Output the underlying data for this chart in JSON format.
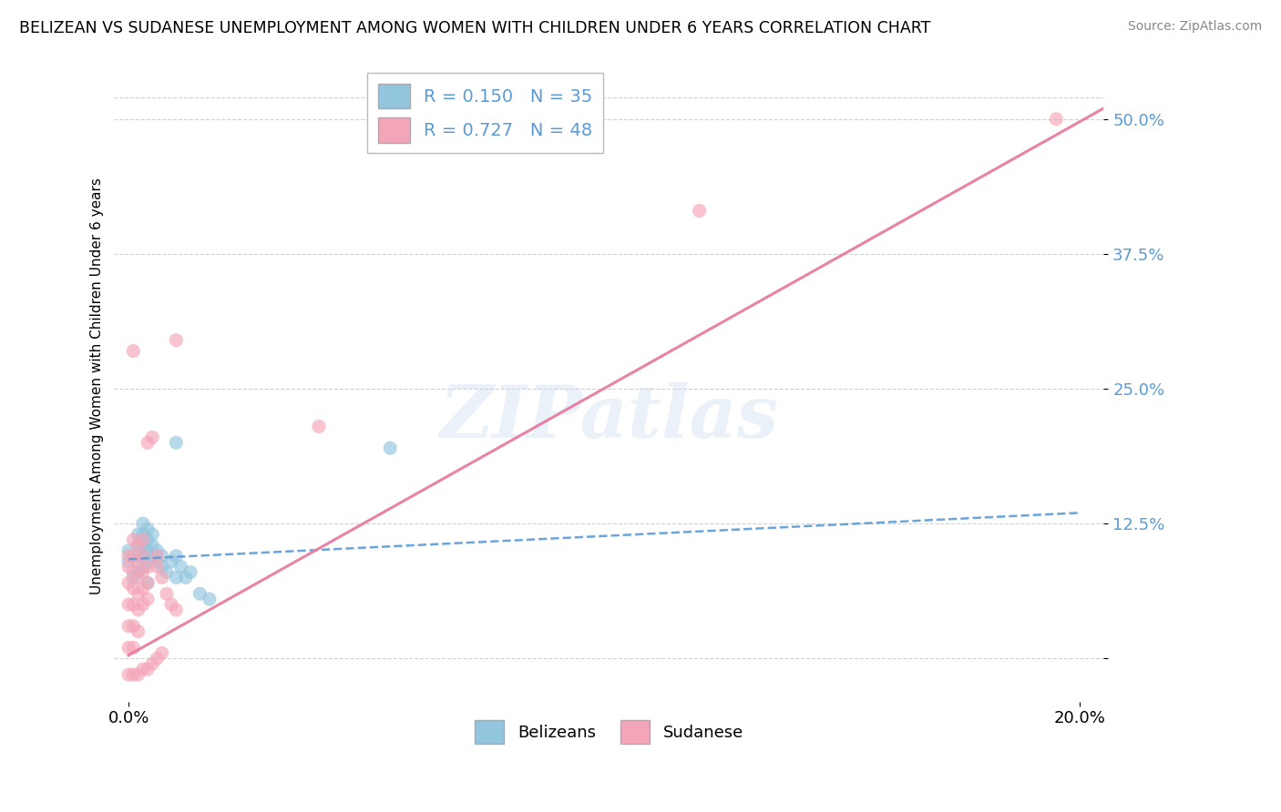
{
  "title": "BELIZEAN VS SUDANESE UNEMPLOYMENT AMONG WOMEN WITH CHILDREN UNDER 6 YEARS CORRELATION CHART",
  "source": "Source: ZipAtlas.com",
  "ylabel": "Unemployment Among Women with Children Under 6 years",
  "xmin": 0.0,
  "xmax": 0.205,
  "ymin": -0.04,
  "ymax": 0.545,
  "yticks": [
    0.0,
    0.125,
    0.25,
    0.375,
    0.5
  ],
  "ytick_labels": [
    "",
    "12.5%",
    "25.0%",
    "37.5%",
    "50.0%"
  ],
  "blue_R": 0.15,
  "blue_N": 35,
  "pink_R": 0.727,
  "pink_N": 48,
  "blue_color": "#92c5de",
  "pink_color": "#f4a5b8",
  "blue_line_color": "#5b9bd5",
  "pink_line_color": "#e87ca0",
  "tick_label_color": "#5b9bd5",
  "blue_scatter": [
    [
      0.0,
      0.09
    ],
    [
      0.0,
      0.1
    ],
    [
      0.001,
      0.075
    ],
    [
      0.002,
      0.095
    ],
    [
      0.002,
      0.105
    ],
    [
      0.002,
      0.115
    ],
    [
      0.002,
      0.08
    ],
    [
      0.003,
      0.085
    ],
    [
      0.003,
      0.095
    ],
    [
      0.003,
      0.105
    ],
    [
      0.003,
      0.115
    ],
    [
      0.003,
      0.125
    ],
    [
      0.004,
      0.09
    ],
    [
      0.004,
      0.1
    ],
    [
      0.004,
      0.11
    ],
    [
      0.004,
      0.12
    ],
    [
      0.004,
      0.07
    ],
    [
      0.005,
      0.095
    ],
    [
      0.005,
      0.105
    ],
    [
      0.005,
      0.115
    ],
    [
      0.006,
      0.09
    ],
    [
      0.006,
      0.1
    ],
    [
      0.007,
      0.085
    ],
    [
      0.007,
      0.095
    ],
    [
      0.008,
      0.08
    ],
    [
      0.009,
      0.09
    ],
    [
      0.01,
      0.095
    ],
    [
      0.01,
      0.075
    ],
    [
      0.011,
      0.085
    ],
    [
      0.012,
      0.075
    ],
    [
      0.013,
      0.08
    ],
    [
      0.015,
      0.06
    ],
    [
      0.017,
      0.055
    ],
    [
      0.01,
      0.2
    ],
    [
      0.055,
      0.195
    ]
  ],
  "pink_scatter": [
    [
      0.0,
      0.01
    ],
    [
      0.0,
      0.03
    ],
    [
      0.0,
      0.05
    ],
    [
      0.0,
      0.07
    ],
    [
      0.0,
      0.085
    ],
    [
      0.0,
      0.095
    ],
    [
      0.001,
      0.01
    ],
    [
      0.001,
      0.03
    ],
    [
      0.001,
      0.05
    ],
    [
      0.001,
      0.065
    ],
    [
      0.001,
      0.08
    ],
    [
      0.001,
      0.095
    ],
    [
      0.001,
      0.11
    ],
    [
      0.001,
      0.285
    ],
    [
      0.002,
      0.025
    ],
    [
      0.002,
      0.045
    ],
    [
      0.002,
      0.06
    ],
    [
      0.002,
      0.075
    ],
    [
      0.002,
      0.09
    ],
    [
      0.002,
      0.105
    ],
    [
      0.003,
      0.05
    ],
    [
      0.003,
      0.065
    ],
    [
      0.003,
      0.08
    ],
    [
      0.003,
      0.095
    ],
    [
      0.003,
      0.11
    ],
    [
      0.004,
      0.055
    ],
    [
      0.004,
      0.07
    ],
    [
      0.004,
      0.085
    ],
    [
      0.004,
      0.2
    ],
    [
      0.005,
      0.205
    ],
    [
      0.006,
      0.085
    ],
    [
      0.006,
      0.095
    ],
    [
      0.007,
      0.075
    ],
    [
      0.008,
      0.06
    ],
    [
      0.009,
      0.05
    ],
    [
      0.01,
      0.045
    ],
    [
      0.01,
      0.295
    ],
    [
      0.04,
      0.215
    ],
    [
      0.12,
      0.415
    ],
    [
      0.195,
      0.5
    ],
    [
      0.0,
      -0.015
    ],
    [
      0.001,
      -0.015
    ],
    [
      0.002,
      -0.015
    ],
    [
      0.003,
      -0.01
    ],
    [
      0.004,
      -0.01
    ],
    [
      0.005,
      -0.005
    ],
    [
      0.006,
      0.0
    ],
    [
      0.007,
      0.005
    ]
  ],
  "blue_line": [
    [
      0.0,
      0.092
    ],
    [
      0.2,
      0.135
    ]
  ],
  "pink_line": [
    [
      0.0,
      0.003
    ],
    [
      0.205,
      0.51
    ]
  ],
  "watermark_text": "ZIPatlas",
  "background_color": "#ffffff",
  "grid_color": "#cccccc"
}
